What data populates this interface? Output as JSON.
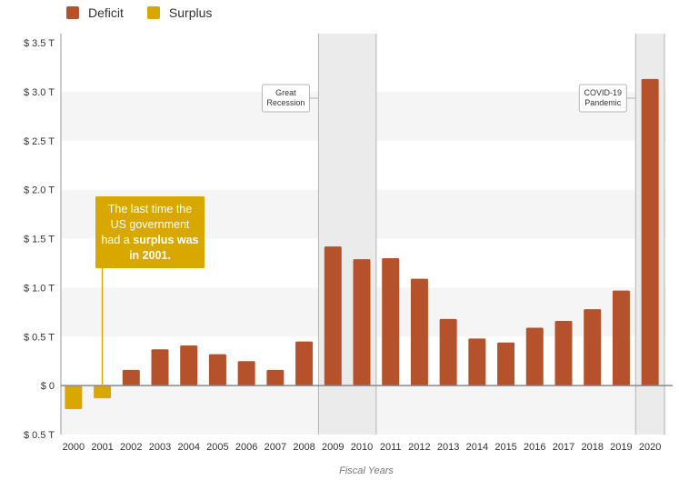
{
  "legend": [
    {
      "label": "Deficit",
      "color": "#b5512b"
    },
    {
      "label": "Surplus",
      "color": "#d9a800"
    }
  ],
  "annotation": {
    "pre": "The last time the US government had a ",
    "bold1": "surplus was",
    "bold2": "in 2001."
  },
  "chart_data": {
    "type": "bar",
    "xlabel": "Fiscal Years",
    "ylabel": "",
    "ylim": [
      -0.5,
      3.5
    ],
    "y_ticks": [
      {
        "v": 3.5,
        "label": "$ 3.5 T"
      },
      {
        "v": 3.0,
        "label": "$ 3.0 T"
      },
      {
        "v": 2.5,
        "label": "$ 2.5 T"
      },
      {
        "v": 2.0,
        "label": "$ 2.0 T"
      },
      {
        "v": 1.5,
        "label": "$ 1.5 T"
      },
      {
        "v": 1.0,
        "label": "$ 1.0 T"
      },
      {
        "v": 0.5,
        "label": "$ 0.5 T"
      },
      {
        "v": 0,
        "label": "$ 0"
      },
      {
        "v": -0.5,
        "label": "$ 0.5 T"
      }
    ],
    "categories": [
      "2000",
      "2001",
      "2002",
      "2003",
      "2004",
      "2005",
      "2006",
      "2007",
      "2008",
      "2009",
      "2010",
      "2011",
      "2012",
      "2013",
      "2014",
      "2015",
      "2016",
      "2017",
      "2018",
      "2019",
      "2020"
    ],
    "values": [
      -0.24,
      -0.13,
      0.16,
      0.37,
      0.41,
      0.32,
      0.25,
      0.16,
      0.45,
      1.42,
      1.29,
      1.3,
      1.09,
      0.68,
      0.48,
      0.44,
      0.59,
      0.66,
      0.78,
      0.97,
      3.13
    ],
    "colors": {
      "deficit": "#b5512b",
      "surplus": "#d9a800"
    },
    "events": [
      {
        "label_lines": [
          "Great",
          "Recession"
        ],
        "from": "2009",
        "to": "2010"
      },
      {
        "label_lines": [
          "COVID-19",
          "Pandemic"
        ],
        "from": "2020",
        "to": "2020"
      }
    ]
  }
}
